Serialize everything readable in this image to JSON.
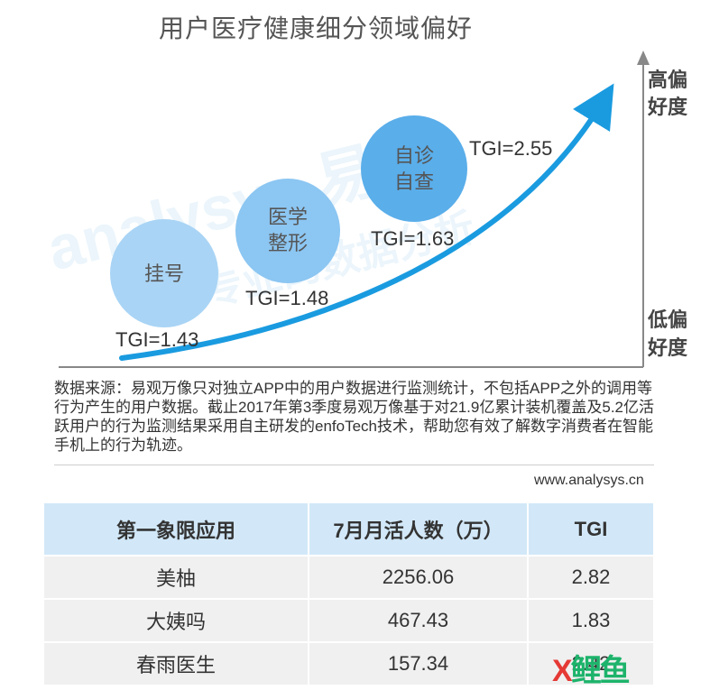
{
  "title": "用户医疗健康细分领域偏好",
  "axis": {
    "high_label_line1": "高偏",
    "high_label_line2": "好度",
    "low_label_line1": "低偏",
    "low_label_line2": "好度"
  },
  "watermark": {
    "line1": "analysys 易观",
    "line2": "专业的数据分析"
  },
  "chart_data": {
    "type": "scatter",
    "title": "用户医疗健康细分领域偏好",
    "xlabel": "",
    "ylabel": "",
    "points": [
      {
        "label_line1": "挂号",
        "label_line2": "",
        "tgi_label": "TGI=1.43",
        "tgi": 1.43,
        "color": "#a9d4f5"
      },
      {
        "label_line1": "医学",
        "label_line2": "整形",
        "tgi_label": "TGI=1.48",
        "tgi": 1.48,
        "color": "#8cc6f2"
      },
      {
        "label_line1": "自诊",
        "label_line2": "自查",
        "tgi_label": "TGI=1.63",
        "tgi": 1.63,
        "color": "#5aaeea"
      },
      {
        "label_line1": "",
        "label_line2": "",
        "tgi_label": "TGI=2.55",
        "tgi": 2.55,
        "color": ""
      }
    ],
    "trend_color": "#1a9be0",
    "grid": false
  },
  "source": {
    "text": "数据来源：易观万像只对独立APP中的用户数据进行监测统计，不包括APP之外的调用等行为产生的用户数据。截止2017年第3季度易观万像基于对21.9亿累计装机覆盖及5.2亿活跃用户的行为监测结果采用自主研发的enfoTech技术，帮助您有效了解数字消费者在智能手机上的行为轨迹。",
    "site": "www.analysys.cn"
  },
  "table": {
    "headers": [
      "第一象限应用",
      "7月月活人数（万）",
      "TGI"
    ],
    "rows": [
      [
        "美柚",
        "2256.06",
        "2.82"
      ],
      [
        "大姨吗",
        "467.43",
        "1.83"
      ],
      [
        "春雨医生",
        "157.34",
        "2.42"
      ]
    ],
    "header_bg": "#d2e8f8",
    "row_bg": "#f0f0f0"
  },
  "logo": {
    "part1": "X",
    "part2": "鲤鱼"
  }
}
